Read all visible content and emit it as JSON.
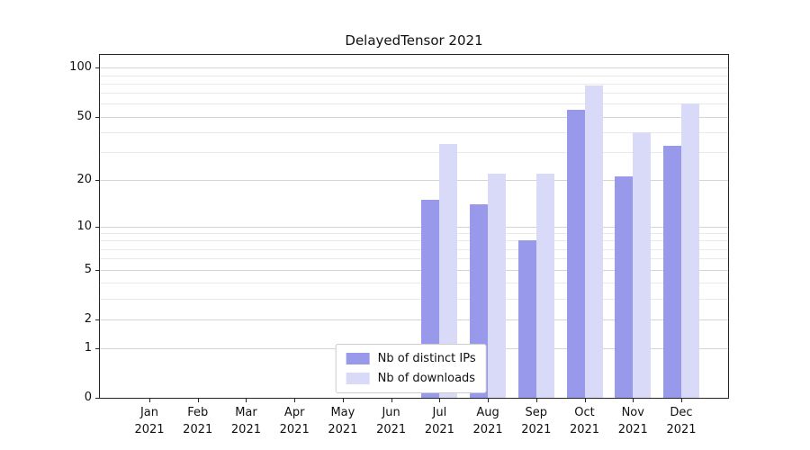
{
  "chart_data": {
    "type": "bar",
    "title": "DelayedTensor 2021",
    "categories": [
      "Jan 2021",
      "Feb 2021",
      "Mar 2021",
      "Apr 2021",
      "May 2021",
      "Jun 2021",
      "Jul 2021",
      "Aug 2021",
      "Sep 2021",
      "Oct 2021",
      "Nov 2021",
      "Dec 2021"
    ],
    "series": [
      {
        "name": "Nb of distinct IPs",
        "color": "#9999ec",
        "values": [
          0,
          0,
          0,
          0,
          0,
          0,
          15,
          14,
          8,
          55,
          21,
          33
        ]
      },
      {
        "name": "Nb of downloads",
        "color": "#d9d9f8",
        "values": [
          0,
          0,
          0,
          0,
          0,
          0,
          34,
          22,
          22,
          78,
          40,
          60
        ]
      }
    ],
    "yscale": "log1p",
    "ylim": [
      0,
      120
    ],
    "yticks": [
      0,
      1,
      2,
      5,
      10,
      20,
      50,
      100
    ],
    "minor_gridlines": [
      3,
      4,
      6,
      7,
      8,
      9,
      30,
      40,
      60,
      70,
      80,
      90
    ],
    "grid": "horizontal",
    "legend_position": "lower center"
  }
}
